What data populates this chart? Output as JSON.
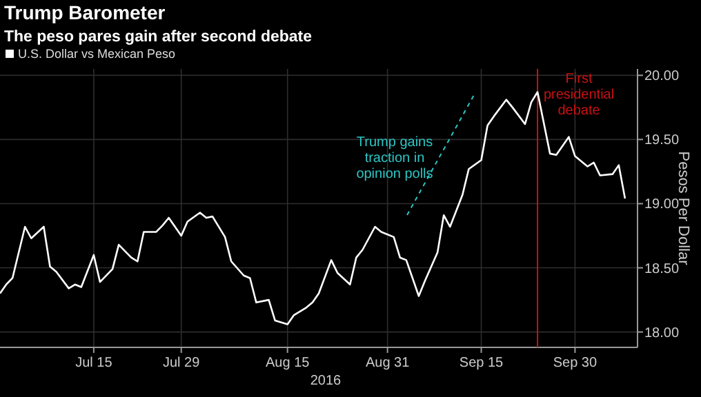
{
  "chart_data": {
    "type": "line",
    "title": "Trump Barometer",
    "subtitle": "The peso pares gain after second debate",
    "xlabel": "2016",
    "ylabel": "Pesos Per Dollar",
    "x": [
      "2016-06-30",
      "2016-07-01",
      "2016-07-02",
      "2016-07-04",
      "2016-07-05",
      "2016-07-07",
      "2016-07-08",
      "2016-07-09",
      "2016-07-11",
      "2016-07-12",
      "2016-07-13",
      "2016-07-15",
      "2016-07-16",
      "2016-07-18",
      "2016-07-19",
      "2016-07-21",
      "2016-07-22",
      "2016-07-23",
      "2016-07-25",
      "2016-07-26",
      "2016-07-27",
      "2016-07-29",
      "2016-07-30",
      "2016-08-01",
      "2016-08-02",
      "2016-08-03",
      "2016-08-05",
      "2016-08-06",
      "2016-08-08",
      "2016-08-09",
      "2016-08-10",
      "2016-08-12",
      "2016-08-13",
      "2016-08-15",
      "2016-08-16",
      "2016-08-18",
      "2016-08-19",
      "2016-08-20",
      "2016-08-22",
      "2016-08-23",
      "2016-08-25",
      "2016-08-26",
      "2016-08-27",
      "2016-08-29",
      "2016-08-30",
      "2016-09-01",
      "2016-09-02",
      "2016-09-03",
      "2016-09-05",
      "2016-09-06",
      "2016-09-08",
      "2016-09-09",
      "2016-09-10",
      "2016-09-12",
      "2016-09-13",
      "2016-09-15",
      "2016-09-16",
      "2016-09-17",
      "2016-09-19",
      "2016-09-20",
      "2016-09-22",
      "2016-09-23",
      "2016-09-24",
      "2016-09-26",
      "2016-09-27",
      "2016-09-29",
      "2016-09-30",
      "2016-10-02",
      "2016-10-03",
      "2016-10-04",
      "2016-10-06",
      "2016-10-07",
      "2016-10-08"
    ],
    "series": [
      {
        "name": "U.S. Dollar vs Mexican Peso",
        "color": "#ffffff",
        "values": [
          18.3,
          18.37,
          18.42,
          18.82,
          18.73,
          18.82,
          18.51,
          18.47,
          18.34,
          18.37,
          18.35,
          18.6,
          18.39,
          18.49,
          18.68,
          18.58,
          18.55,
          18.78,
          18.78,
          18.83,
          18.89,
          18.75,
          18.86,
          18.93,
          18.89,
          18.9,
          18.74,
          18.55,
          18.44,
          18.42,
          18.23,
          18.25,
          18.09,
          18.06,
          18.13,
          18.19,
          18.23,
          18.3,
          18.56,
          18.46,
          18.37,
          18.58,
          18.64,
          18.82,
          18.78,
          18.74,
          18.58,
          18.56,
          18.28,
          18.4,
          18.62,
          18.91,
          18.82,
          19.07,
          19.27,
          19.34,
          19.61,
          19.68,
          19.81,
          19.75,
          19.62,
          19.79,
          19.87,
          19.39,
          19.38,
          19.52,
          19.37,
          19.29,
          19.32,
          19.22,
          19.23,
          19.3,
          19.04
        ]
      }
    ],
    "xlim": [
      "2016-06-30",
      "2016-10-10"
    ],
    "xticks": [
      {
        "value": "2016-07-15",
        "label": "Jul 15"
      },
      {
        "value": "2016-07-29",
        "label": "Jul 29"
      },
      {
        "value": "2016-08-15",
        "label": "Aug 15"
      },
      {
        "value": "2016-08-31",
        "label": "Aug 31"
      },
      {
        "value": "2016-09-15",
        "label": "Sep 15"
      },
      {
        "value": "2016-09-30",
        "label": "Sep 30"
      }
    ],
    "ylim": [
      17.88,
      20.05
    ],
    "yticks": [
      {
        "value": 18,
        "label": "18.00"
      },
      {
        "value": 18.5,
        "label": "18.50"
      },
      {
        "value": 19,
        "label": "19.00"
      },
      {
        "value": 19.5,
        "label": "19.50"
      },
      {
        "value": 20,
        "label": "20.00"
      }
    ],
    "grid": true,
    "legend": "top left",
    "marker": "none",
    "line_style": "solid",
    "ref_lines": [
      {
        "axis": "x",
        "value": "2016-09-24",
        "label": "First presidential debate",
        "color": "#cc1111"
      }
    ],
    "annotations": [
      "Trump gains traction in opinion polls"
    ]
  }
}
